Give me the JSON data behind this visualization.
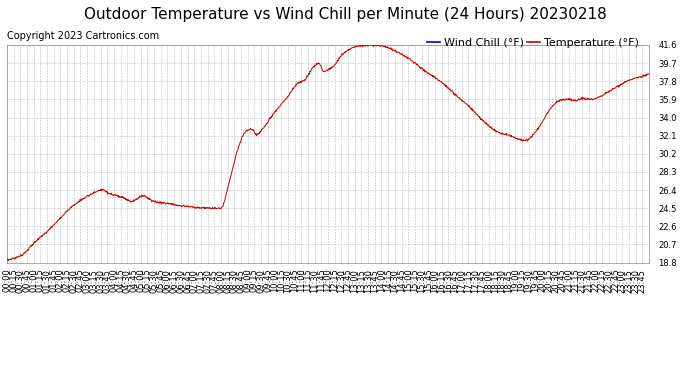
{
  "title": "Outdoor Temperature vs Wind Chill per Minute (24 Hours) 20230218",
  "copyright": "Copyright 2023 Cartronics.com",
  "legend_wind_chill": "Wind Chill (°F)",
  "legend_temperature": "Temperature (°F)",
  "line_color": "#cc0000",
  "wind_chill_color": "#0000cc",
  "temperature_color": "#cc0000",
  "background_color": "#ffffff",
  "grid_color": "#bbbbbb",
  "ylim": [
    18.8,
    41.6
  ],
  "yticks": [
    18.8,
    20.7,
    22.6,
    24.5,
    26.4,
    28.3,
    30.2,
    32.1,
    34.0,
    35.9,
    37.8,
    39.7,
    41.6
  ],
  "title_fontsize": 11,
  "copyright_fontsize": 7,
  "legend_fontsize": 8,
  "tick_fontsize": 6,
  "num_points": 1440
}
